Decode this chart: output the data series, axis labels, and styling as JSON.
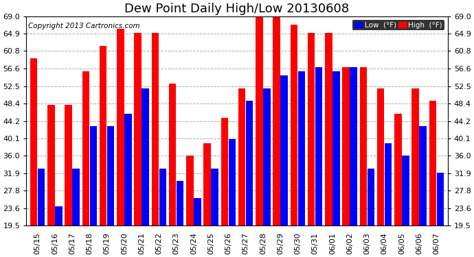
{
  "title": "Dew Point Daily High/Low 20130608",
  "copyright": "Copyright 2013 Cartronics.com",
  "dates": [
    "05/15",
    "05/16",
    "05/17",
    "05/18",
    "05/19",
    "05/20",
    "05/21",
    "05/22",
    "05/23",
    "05/24",
    "05/25",
    "05/26",
    "05/27",
    "05/28",
    "05/29",
    "05/30",
    "05/31",
    "06/01",
    "06/02",
    "06/03",
    "06/04",
    "06/05",
    "06/06",
    "06/07"
  ],
  "low": [
    33.0,
    24.0,
    33.0,
    43.0,
    43.0,
    46.0,
    52.0,
    33.0,
    30.0,
    26.0,
    33.0,
    40.0,
    49.0,
    52.0,
    55.0,
    56.0,
    57.0,
    56.0,
    57.0,
    33.0,
    39.0,
    36.0,
    43.0,
    32.0
  ],
  "high": [
    59.0,
    48.0,
    48.0,
    56.0,
    62.0,
    66.0,
    65.0,
    65.0,
    53.0,
    36.0,
    39.0,
    45.0,
    52.0,
    69.0,
    69.0,
    67.0,
    65.0,
    65.0,
    57.0,
    57.0,
    52.0,
    46.0,
    52.0,
    49.0
  ],
  "yticks": [
    19.5,
    23.6,
    27.8,
    31.9,
    36.0,
    40.1,
    44.2,
    48.4,
    52.5,
    56.6,
    60.8,
    64.9,
    69.0
  ],
  "ymin": 19.5,
  "ymax": 69.0,
  "bar_color_low": "#0000ff",
  "bar_color_high": "#ff0000",
  "background_color": "#ffffff",
  "grid_color": "#aaaaaa",
  "legend_low_label": "Low  (°F)",
  "legend_high_label": "High  (°F)",
  "title_fontsize": 13,
  "copyright_fontsize": 7.5,
  "tick_fontsize": 8
}
